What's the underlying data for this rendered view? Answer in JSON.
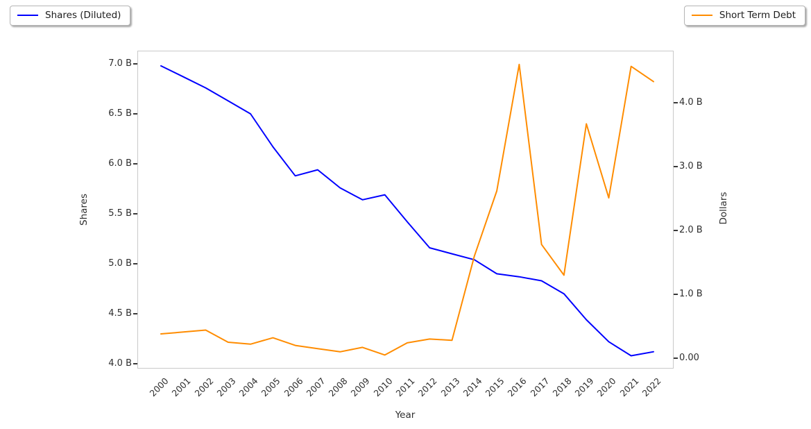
{
  "chart_data": {
    "type": "line",
    "title": "",
    "x_label": "Year",
    "y_left_label": "Shares",
    "y_right_label": "Dollars",
    "x": [
      2000,
      2001,
      2002,
      2003,
      2004,
      2005,
      2006,
      2007,
      2008,
      2009,
      2010,
      2011,
      2012,
      2013,
      2014,
      2015,
      2016,
      2017,
      2018,
      2019,
      2020,
      2021,
      2022
    ],
    "series": [
      {
        "name": "Shares (Diluted)",
        "yaxis": "left",
        "color": "#0000ff",
        "values": [
          6.98,
          6.87,
          6.76,
          6.63,
          6.5,
          6.17,
          5.88,
          5.94,
          5.76,
          5.64,
          5.69,
          5.42,
          5.16,
          5.1,
          5.04,
          4.9,
          4.87,
          4.83,
          4.7,
          4.44,
          4.22,
          4.08,
          4.12
        ]
      },
      {
        "name": "Short Term Debt",
        "yaxis": "right",
        "color": "#ff8c00",
        "values": [
          0.38,
          0.41,
          0.44,
          0.25,
          0.22,
          0.32,
          0.2,
          0.15,
          0.1,
          0.17,
          0.05,
          0.24,
          0.3,
          0.28,
          1.6,
          2.62,
          4.6,
          1.78,
          1.3,
          3.67,
          2.51,
          4.57,
          4.33
        ]
      }
    ],
    "units": "B",
    "y_left_tick_labels": [
      "7.0 B",
      "6.5 B",
      "6.0 B",
      "5.5 B",
      "5.0 B",
      "4.5 B",
      "4.0 B"
    ],
    "y_left_tick_values": [
      7.0,
      6.5,
      6.0,
      5.5,
      5.0,
      4.5,
      4.0
    ],
    "y_right_tick_labels": [
      "4.0 B",
      "3.0 B",
      "2.0 B",
      "1.0 B",
      "0.00"
    ],
    "y_right_tick_values": [
      4.0,
      3.0,
      2.0,
      1.0,
      0.0
    ],
    "ylim_left": [
      3.94,
      7.13
    ],
    "ylim_right": [
      -0.18,
      4.83
    ],
    "grid": false,
    "legend_positions": [
      "outside-upper-left",
      "outside-upper-right"
    ]
  }
}
